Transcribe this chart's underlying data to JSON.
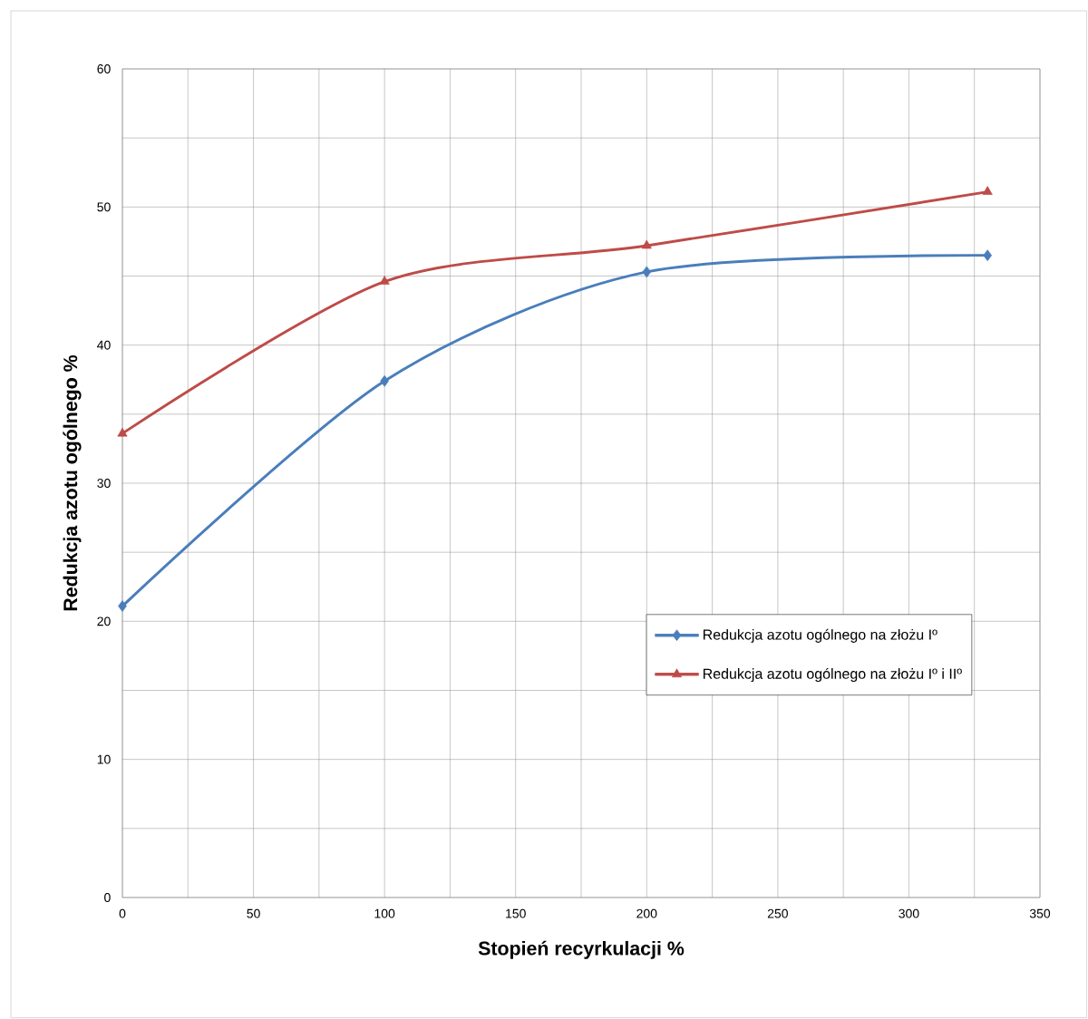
{
  "chart_data": {
    "type": "line",
    "xlabel": "Stopień recyrkulacji %",
    "ylabel": "Redukcja azotu ogólnego %",
    "xlim": [
      0,
      350
    ],
    "xticks": [
      0,
      50,
      100,
      150,
      200,
      250,
      300,
      350
    ],
    "ylim": [
      0,
      60
    ],
    "yticks": [
      0,
      10,
      20,
      30,
      40,
      50,
      60
    ],
    "grid": true,
    "legend": "right",
    "series": [
      {
        "name": "Redukcja azotu ogólnego na złożu Iº",
        "color": "#4a7ebb",
        "marker": "diamond",
        "x": [
          0,
          100,
          200,
          330
        ],
        "values": [
          21.1,
          37.4,
          45.3,
          46.5
        ]
      },
      {
        "name": "Redukcja azotu ogólnego na złożu Iº i IIº",
        "color": "#be4b48",
        "marker": "triangle",
        "x": [
          0,
          100,
          200,
          330
        ],
        "values": [
          33.6,
          44.6,
          47.2,
          51.1
        ]
      }
    ]
  }
}
